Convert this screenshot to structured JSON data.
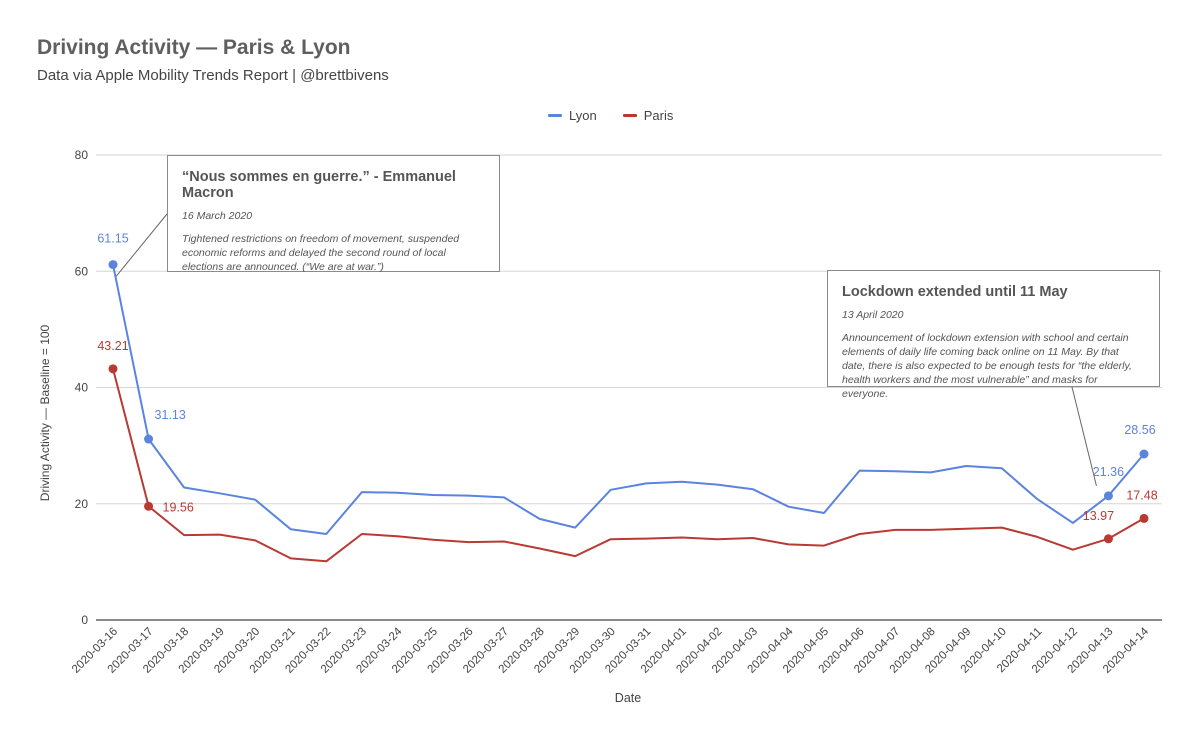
{
  "header": {
    "title": "Driving Activity — Paris & Lyon",
    "subtitle": "Data via Apple Mobility Trends Report | @brettbivens"
  },
  "chart_data": {
    "type": "line",
    "xlabel": "Date",
    "ylabel": "Driving Activity — Baseline = 100",
    "ylim": [
      0,
      80
    ],
    "yticks": [
      0,
      20,
      40,
      60,
      80
    ],
    "grid": true,
    "legend_position": "top-center",
    "x": [
      "2020-03-16",
      "2020-03-17",
      "2020-03-18",
      "2020-03-19",
      "2020-03-20",
      "2020-03-21",
      "2020-03-22",
      "2020-03-23",
      "2020-03-24",
      "2020-03-25",
      "2020-03-26",
      "2020-03-27",
      "2020-03-28",
      "2020-03-29",
      "2020-03-30",
      "2020-03-31",
      "2020-04-01",
      "2020-04-02",
      "2020-04-03",
      "2020-04-04",
      "2020-04-05",
      "2020-04-06",
      "2020-04-07",
      "2020-04-08",
      "2020-04-09",
      "2020-04-10",
      "2020-04-11",
      "2020-04-12",
      "2020-04-13",
      "2020-04-14"
    ],
    "series": [
      {
        "name": "Lyon",
        "color": "#5b84de",
        "values": [
          61.15,
          31.13,
          22.8,
          21.8,
          20.7,
          15.6,
          14.8,
          22.0,
          21.9,
          21.5,
          21.4,
          21.1,
          17.4,
          15.9,
          22.4,
          23.5,
          23.8,
          23.3,
          22.5,
          19.5,
          18.4,
          25.7,
          25.6,
          25.4,
          26.5,
          26.1,
          20.8,
          16.7,
          21.36,
          28.56
        ],
        "labels": [
          {
            "index": 0,
            "text": "61.15"
          },
          {
            "index": 1,
            "text": "31.13"
          },
          {
            "index": 28,
            "text": "21.36"
          },
          {
            "index": 29,
            "text": "28.56"
          }
        ]
      },
      {
        "name": "Paris",
        "color": "#b83a33",
        "values": [
          43.21,
          19.56,
          14.6,
          14.7,
          13.7,
          10.6,
          10.1,
          14.8,
          14.4,
          13.8,
          13.4,
          13.5,
          12.3,
          11.0,
          13.9,
          14.0,
          14.2,
          13.9,
          14.1,
          13.0,
          12.8,
          14.8,
          15.5,
          15.5,
          15.7,
          15.9,
          14.3,
          12.1,
          13.97,
          17.48
        ],
        "labels": [
          {
            "index": 0,
            "text": "43.21"
          },
          {
            "index": 1,
            "text": "19.56"
          },
          {
            "index": 28,
            "text": "13.97"
          },
          {
            "index": 29,
            "text": "17.48"
          }
        ]
      }
    ],
    "annotations": [
      {
        "title": "“Nous sommes en guerre.” - Emmanuel Macron",
        "date": "16 March 2020",
        "body": "Tightened restrictions on freedom of movement, suspended economic reforms and delayed the second round of local elections are announced. (“We are at war.”)"
      },
      {
        "title": "Lockdown extended until 11 May",
        "date": "13 April 2020",
        "body": "Announcement of lockdown extension with school and certain elements of daily life coming back online on 11 May. By that date, there is also expected to be enough tests for “the elderly, health workers and the most vulnerable” and masks for everyone."
      }
    ]
  }
}
